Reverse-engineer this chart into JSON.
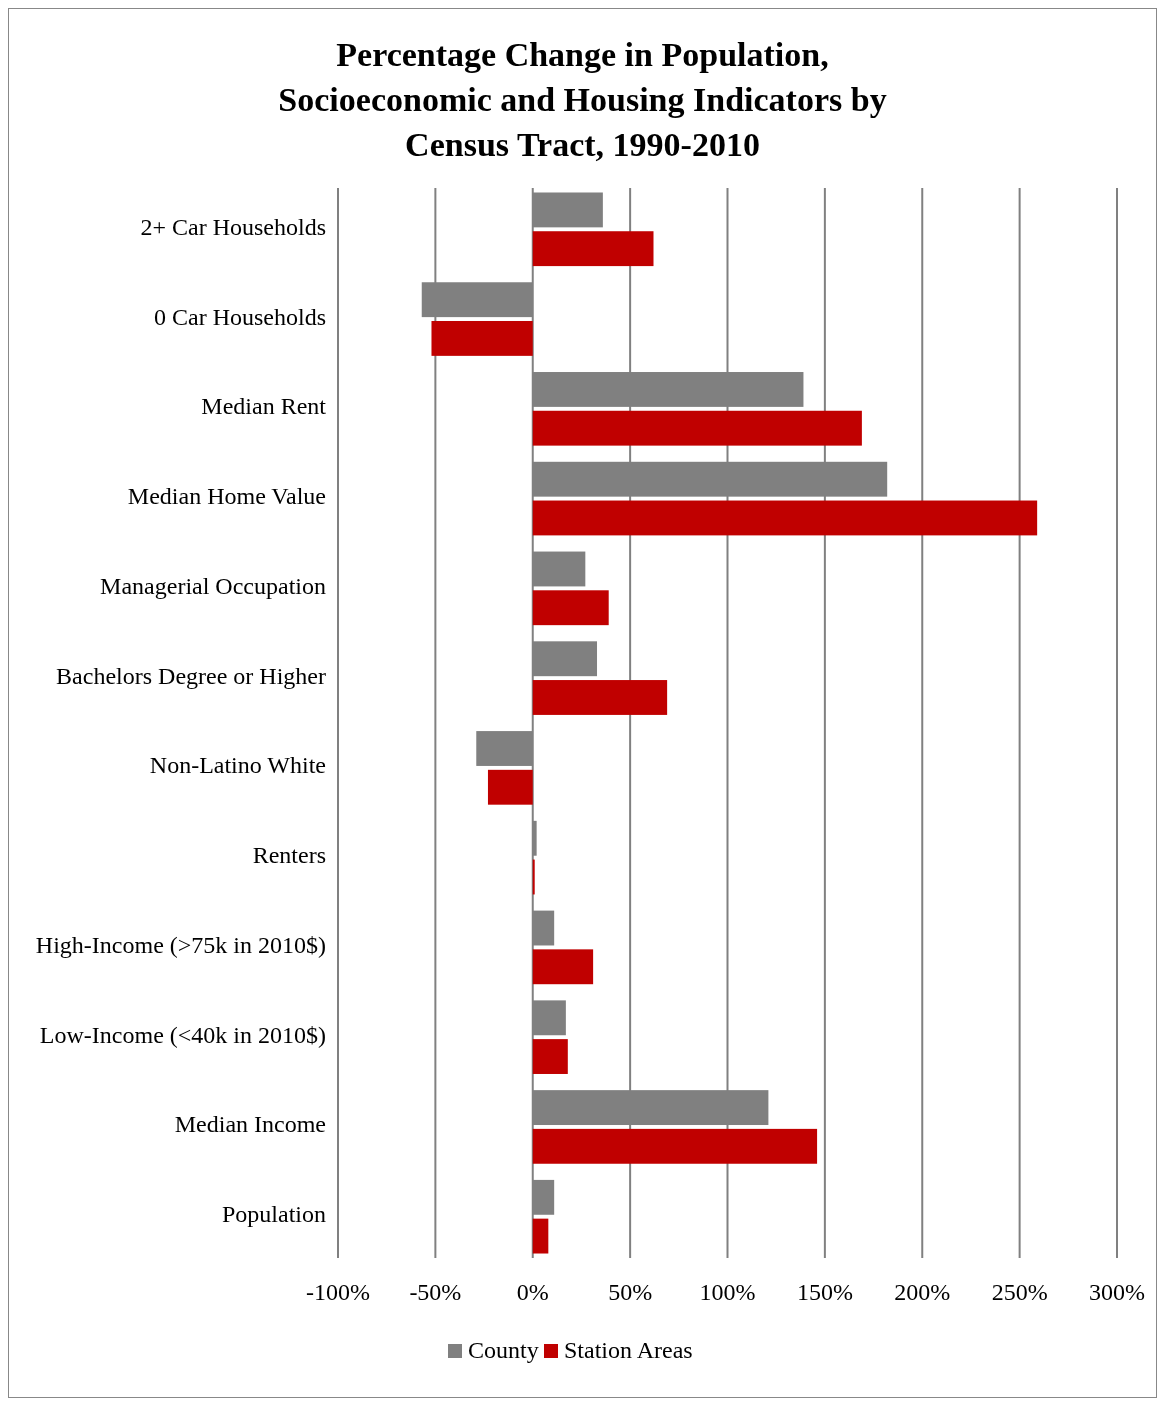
{
  "chart_data": {
    "type": "bar",
    "orientation": "horizontal",
    "title": "Percentage Change in Population, Socioeconomic and Housing Indicators by Census Tract, 1990-2010",
    "categories": [
      "2+ Car Households",
      "0 Car Households",
      "Median Rent",
      "Median Home Value",
      "Managerial Occupation",
      "Bachelors Degree or Higher",
      "Non-Latino White",
      "Renters",
      "High-Income (>75k in 2010$)",
      "Low-Income (<40k in 2010$)",
      "Median Income",
      "Population"
    ],
    "series": [
      {
        "name": "County",
        "color": "#808080",
        "values": [
          36,
          -57,
          139,
          182,
          27,
          33,
          -29,
          2,
          11,
          17,
          121,
          11
        ]
      },
      {
        "name": "Station Areas",
        "color": "#c00000",
        "values": [
          62,
          -52,
          169,
          259,
          39,
          69,
          -23,
          1,
          31,
          18,
          146,
          8
        ]
      }
    ],
    "xlim": [
      -100,
      300
    ],
    "xticks": [
      {
        "value": -100,
        "label": "-100%"
      },
      {
        "value": -50,
        "label": "-50%"
      },
      {
        "value": 0,
        "label": "0%"
      },
      {
        "value": 50,
        "label": "50%"
      },
      {
        "value": 100,
        "label": "100%"
      },
      {
        "value": 150,
        "label": "150%"
      },
      {
        "value": 200,
        "label": "200%"
      },
      {
        "value": 250,
        "label": "250%"
      },
      {
        "value": 300,
        "label": "300%"
      }
    ],
    "grid": "x",
    "legend": "bottom"
  }
}
